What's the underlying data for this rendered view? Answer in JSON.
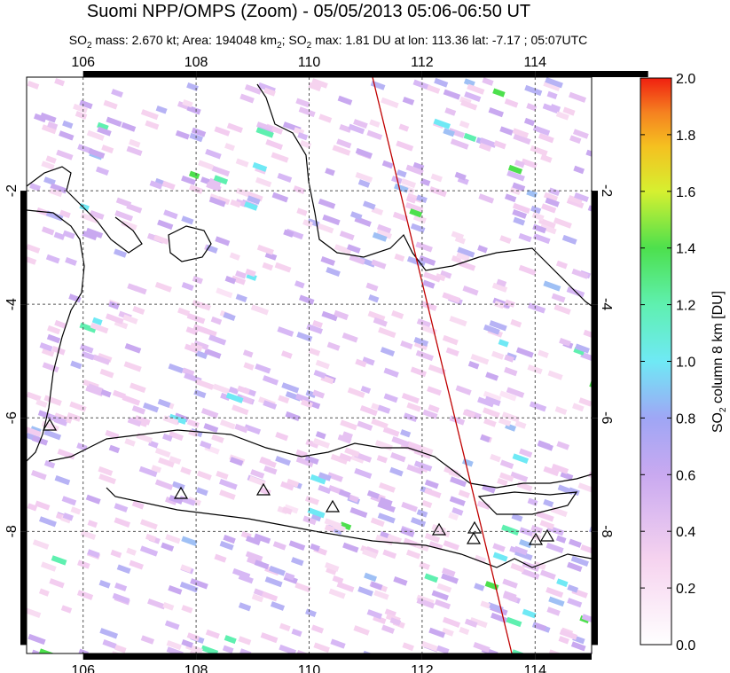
{
  "chart_data": {
    "type": "map",
    "title": "Suomi NPP/OMPS (Zoom) - 05/05/2013 05:06-06:50 UT",
    "subtitle": [
      "SO",
      "2",
      " mass: 2.670 kt; Area: 194048 km",
      "2",
      "; SO",
      "2",
      " max: 1.81 DU at lon: 113.36 lat: -7.17 ; 05:07UTC"
    ],
    "xlim": [
      105,
      115
    ],
    "xticks": [
      106,
      108,
      110,
      112,
      114
    ],
    "ylim": [
      -10.15,
      0
    ],
    "yticks": [
      -2,
      -4,
      -6,
      -8
    ],
    "colorbar": {
      "label": [
        "SO",
        "2",
        " column 8 km [DU]"
      ],
      "lim": [
        0,
        2
      ],
      "ticks": [
        {
          "value": 0,
          "label": "0.0"
        },
        {
          "value": 0.2,
          "label": "0.2"
        },
        {
          "value": 0.4,
          "label": "0.4"
        },
        {
          "value": 0.6,
          "label": "0.6"
        },
        {
          "value": 0.8,
          "label": "0.8"
        },
        {
          "value": 1,
          "label": "1.0"
        },
        {
          "value": 1.2,
          "label": "1.2"
        },
        {
          "value": 1.4,
          "label": "1.4"
        },
        {
          "value": 1.6,
          "label": "1.6"
        },
        {
          "value": 1.8,
          "label": "1.8"
        },
        {
          "value": 2,
          "label": "2.0"
        }
      ]
    }
  }
}
